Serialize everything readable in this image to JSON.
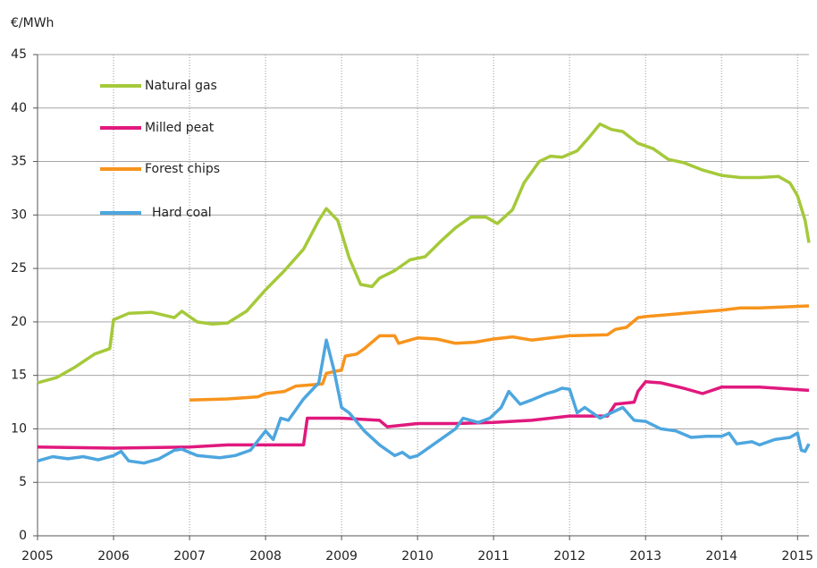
{
  "chart_data": {
    "type": "line",
    "y_label": "€/MWh",
    "xlim": [
      2005,
      2015.15
    ],
    "xticks": [
      2005,
      2006,
      2007,
      2008,
      2009,
      2010,
      2011,
      2012,
      2013,
      2014,
      2015
    ],
    "ylim": [
      0,
      45
    ],
    "yticks": [
      0,
      5,
      10,
      15,
      20,
      25,
      30,
      35,
      40,
      45
    ],
    "grid": true,
    "legend": "top-left",
    "series": [
      {
        "name": "Natural gas",
        "color": "#a5c93a",
        "x": [
          2005,
          2005.25,
          2005.5,
          2005.75,
          2005.95,
          2006.0,
          2006.2,
          2006.5,
          2006.8,
          2006.9,
          2007.1,
          2007.3,
          2007.5,
          2007.75,
          2008.0,
          2008.25,
          2008.5,
          2008.7,
          2008.8,
          2008.95,
          2009.1,
          2009.25,
          2009.4,
          2009.5,
          2009.7,
          2009.9,
          2010.1,
          2010.3,
          2010.5,
          2010.7,
          2010.9,
          2011.05,
          2011.25,
          2011.4,
          2011.6,
          2011.75,
          2011.9,
          2012.1,
          2012.25,
          2012.4,
          2012.55,
          2012.7,
          2012.9,
          2013.1,
          2013.3,
          2013.5,
          2013.75,
          2014.0,
          2014.25,
          2014.5,
          2014.75,
          2014.9,
          2015.0,
          2015.1,
          2015.15
        ],
        "values": [
          14.3,
          14.8,
          15.8,
          17.0,
          17.5,
          20.2,
          20.8,
          20.9,
          20.4,
          21.0,
          20.0,
          19.8,
          19.9,
          21.0,
          23.0,
          24.8,
          26.8,
          29.5,
          30.6,
          29.5,
          26.0,
          23.5,
          23.3,
          24.1,
          24.8,
          25.8,
          26.1,
          27.5,
          28.8,
          29.8,
          29.8,
          29.2,
          30.5,
          33.0,
          35.0,
          35.5,
          35.4,
          36.0,
          37.2,
          38.5,
          38.0,
          37.8,
          36.7,
          36.2,
          35.2,
          34.9,
          34.2,
          33.7,
          33.5,
          33.5,
          33.6,
          33.0,
          31.8,
          29.5,
          27.4
        ]
      },
      {
        "name": "Milled peat",
        "color": "#e0197d",
        "x": [
          2005,
          2006,
          2007,
          2007.5,
          2008,
          2008.5,
          2008.55,
          2009,
          2009.5,
          2009.6,
          2010,
          2010.5,
          2011,
          2011.5,
          2012,
          2012.5,
          2012.6,
          2012.85,
          2012.9,
          2013,
          2013.2,
          2013.5,
          2013.75,
          2014,
          2014.5,
          2015.15
        ],
        "values": [
          8.3,
          8.2,
          8.3,
          8.5,
          8.5,
          8.5,
          11.0,
          11.0,
          10.8,
          10.2,
          10.5,
          10.5,
          10.6,
          10.8,
          11.2,
          11.2,
          12.3,
          12.5,
          13.5,
          14.4,
          14.3,
          13.8,
          13.3,
          13.9,
          13.9,
          13.6
        ]
      },
      {
        "name": "Forest chips",
        "color": "#f7941d",
        "x": [
          2007,
          2007.5,
          2007.9,
          2008.0,
          2008.25,
          2008.4,
          2008.75,
          2008.8,
          2009.0,
          2009.05,
          2009.2,
          2009.3,
          2009.5,
          2009.7,
          2009.75,
          2010,
          2010.25,
          2010.5,
          2010.75,
          2011,
          2011.25,
          2011.5,
          2011.75,
          2012,
          2012.5,
          2012.6,
          2012.75,
          2012.9,
          2013,
          2013.5,
          2014,
          2014.25,
          2014.5,
          2015.15
        ],
        "values": [
          12.7,
          12.8,
          13.0,
          13.3,
          13.5,
          14.0,
          14.2,
          15.2,
          15.5,
          16.8,
          17.0,
          17.5,
          18.7,
          18.7,
          18.0,
          18.5,
          18.4,
          18.0,
          18.1,
          18.4,
          18.6,
          18.3,
          18.5,
          18.7,
          18.8,
          19.3,
          19.5,
          20.4,
          20.5,
          20.8,
          21.1,
          21.3,
          21.3,
          21.5
        ]
      },
      {
        "name": "Hard coal",
        "color": "#4da6df",
        "x": [
          2005,
          2005.2,
          2005.4,
          2005.6,
          2005.8,
          2006,
          2006.1,
          2006.2,
          2006.4,
          2006.6,
          2006.8,
          2006.9,
          2007.1,
          2007.4,
          2007.6,
          2007.8,
          2008.0,
          2008.1,
          2008.2,
          2008.3,
          2008.5,
          2008.7,
          2008.8,
          2008.9,
          2009.0,
          2009.1,
          2009.3,
          2009.5,
          2009.7,
          2009.8,
          2009.9,
          2010.0,
          2010.1,
          2010.3,
          2010.5,
          2010.6,
          2010.8,
          2010.95,
          2011.1,
          2011.2,
          2011.35,
          2011.5,
          2011.7,
          2011.8,
          2011.9,
          2012.0,
          2012.1,
          2012.2,
          2012.4,
          2012.55,
          2012.7,
          2012.85,
          2013,
          2013.2,
          2013.4,
          2013.6,
          2013.8,
          2014,
          2014.1,
          2014.2,
          2014.4,
          2014.5,
          2014.7,
          2014.9,
          2015.0,
          2015.05,
          2015.1,
          2015.15
        ],
        "values": [
          7.0,
          7.4,
          7.2,
          7.4,
          7.1,
          7.5,
          7.9,
          7.0,
          6.8,
          7.2,
          8.0,
          8.1,
          7.5,
          7.3,
          7.5,
          8.0,
          9.8,
          9.0,
          11.0,
          10.8,
          12.8,
          14.3,
          18.3,
          15.5,
          12.0,
          11.5,
          9.8,
          8.5,
          7.5,
          7.8,
          7.3,
          7.5,
          8.0,
          9.0,
          10.0,
          11.0,
          10.6,
          11.0,
          12.0,
          13.5,
          12.3,
          12.7,
          13.3,
          13.5,
          13.8,
          13.7,
          11.5,
          12.0,
          11.0,
          11.5,
          12.0,
          10.8,
          10.7,
          10.0,
          9.8,
          9.2,
          9.3,
          9.3,
          9.6,
          8.6,
          8.8,
          8.5,
          9.0,
          9.2,
          9.6,
          8.0,
          7.9,
          8.6
        ]
      }
    ]
  }
}
